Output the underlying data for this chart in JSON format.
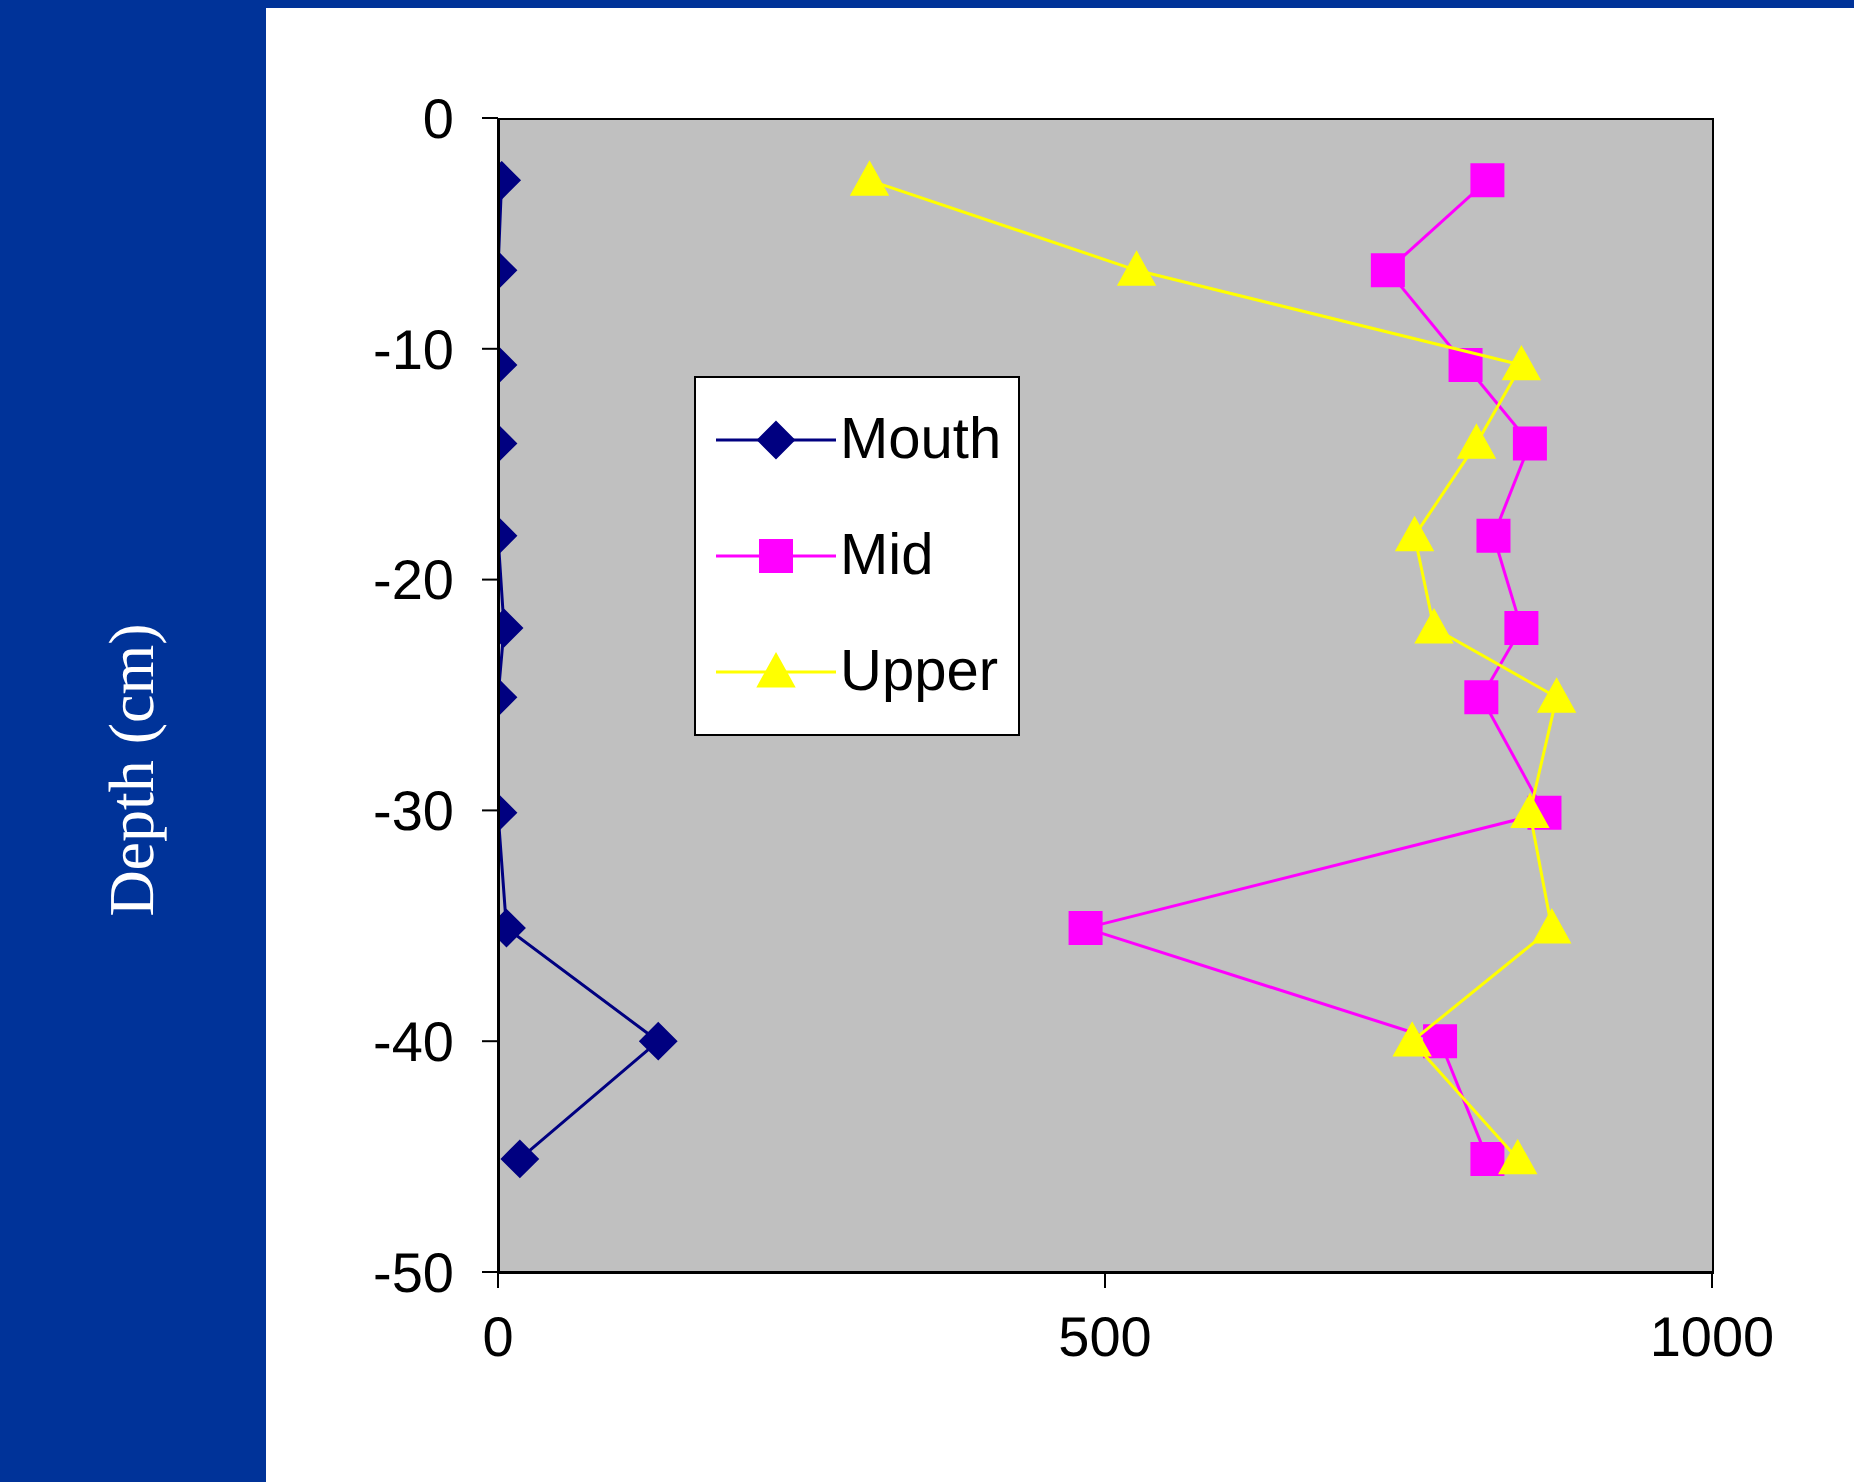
{
  "chart_data": {
    "type": "line",
    "ylabel": "Depth (cm)",
    "xlim": [
      0,
      1000
    ],
    "xticks": [
      0,
      500,
      1000
    ],
    "ylim": [
      -50,
      0
    ],
    "yticks": [
      -50,
      -40,
      -30,
      -20,
      -10,
      0
    ],
    "grid": false,
    "legend": "top left",
    "line_style": "solid",
    "series": [
      {
        "name": "Mouth",
        "color": "#000080",
        "marker": "diamond",
        "x": [
          3,
          0,
          0,
          0,
          0,
          5,
          0,
          0,
          7,
          132,
          18
        ],
        "values": [
          -2.7,
          -6.6,
          -10.7,
          -14.1,
          -18.1,
          -22.1,
          -25.1,
          -30.1,
          -35.1,
          -40,
          -45.1
        ]
      },
      {
        "name": "Mid",
        "color": "#ff00ff",
        "marker": "square",
        "x": [
          815,
          733,
          797,
          850,
          820,
          843,
          810,
          862,
          484,
          776,
          815
        ],
        "values": [
          -2.7,
          -6.6,
          -10.7,
          -14.1,
          -18.1,
          -22.1,
          -25.1,
          -30.1,
          -35.1,
          -40,
          -45.1
        ]
      },
      {
        "name": "Upper",
        "color": "#ffff00",
        "marker": "triangle",
        "x": [
          306,
          526,
          843,
          806,
          755,
          771,
          872,
          850,
          868,
          753,
          840
        ],
        "values": [
          -2.7,
          -6.6,
          -10.7,
          -14.1,
          -18.1,
          -22.1,
          -25.1,
          -30.1,
          -35.1,
          -40,
          -45.1
        ]
      }
    ]
  }
}
